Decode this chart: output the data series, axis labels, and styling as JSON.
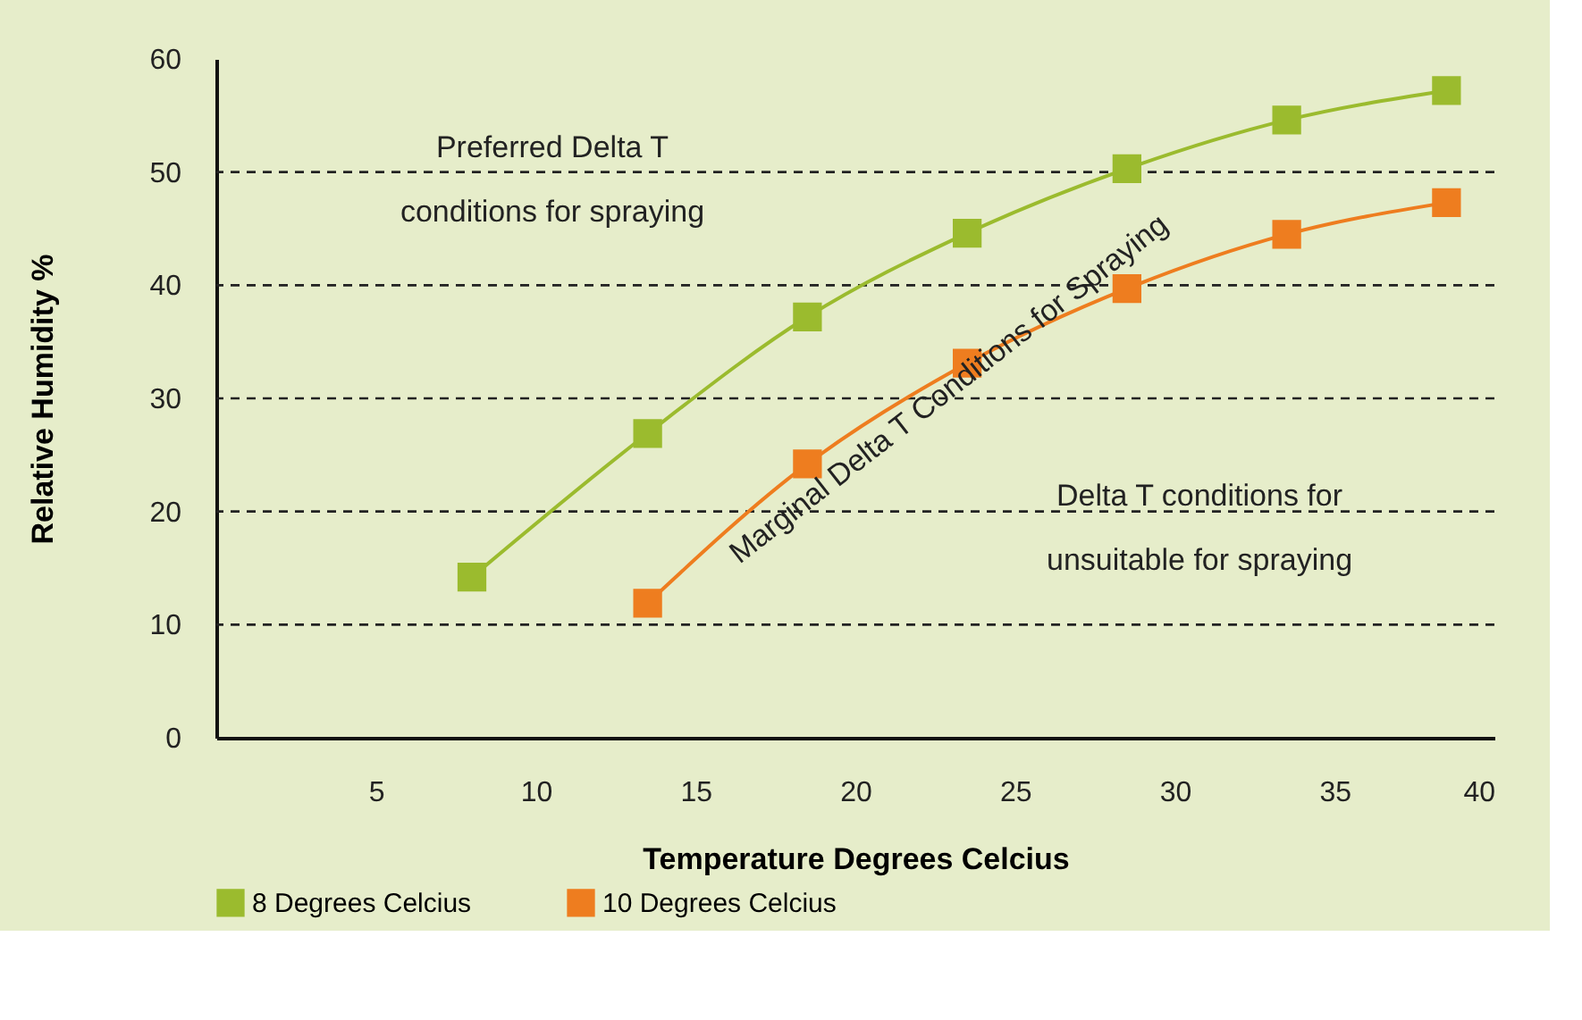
{
  "chart_data": {
    "type": "line",
    "xlabel": "Temperature Degrees Celcius",
    "ylabel": "Relative Humidity %",
    "xlim": [
      0,
      40
    ],
    "xticks": [
      5,
      10,
      15,
      20,
      25,
      30,
      35,
      40
    ],
    "ylim": [
      0,
      60
    ],
    "yticks": [
      0,
      10,
      20,
      30,
      40,
      50,
      60
    ],
    "series": [
      {
        "name": "8 Degrees Celcius",
        "color": "#9bbb2e",
        "x": [
          8,
          13.5,
          18.5,
          23.5,
          28.5,
          33.5,
          38.5
        ],
        "values": [
          14.2,
          26.9,
          37.2,
          44.6,
          50.3,
          54.6,
          57.2
        ]
      },
      {
        "name": "10 Degrees Celcius",
        "color": "#ee7d1f",
        "x": [
          13.5,
          18.5,
          23.5,
          28.5,
          33.5,
          38.5
        ],
        "values": [
          11.9,
          24.2,
          33.1,
          39.7,
          44.5,
          47.3
        ]
      }
    ],
    "ref_lines": [
      {
        "axis": "y",
        "value": 10,
        "color": "#222222",
        "line_style": "dashed"
      },
      {
        "axis": "y",
        "value": 20,
        "color": "#222222",
        "line_style": "dashed"
      },
      {
        "axis": "y",
        "value": 30,
        "color": "#222222",
        "line_style": "dashed"
      },
      {
        "axis": "y",
        "value": 40,
        "color": "#222222",
        "line_style": "dashed"
      },
      {
        "axis": "y",
        "value": 50,
        "color": "#222222",
        "line_style": "dashed"
      }
    ],
    "annotations": [
      "Preferred Delta T\nconditions for spraying",
      "Marginal Delta T Conditions for Spraying",
      "Delta T conditions for\nunsuitable for spraying"
    ],
    "marker": "square",
    "line_style": "solid",
    "legend": "bottom",
    "grid": false
  }
}
